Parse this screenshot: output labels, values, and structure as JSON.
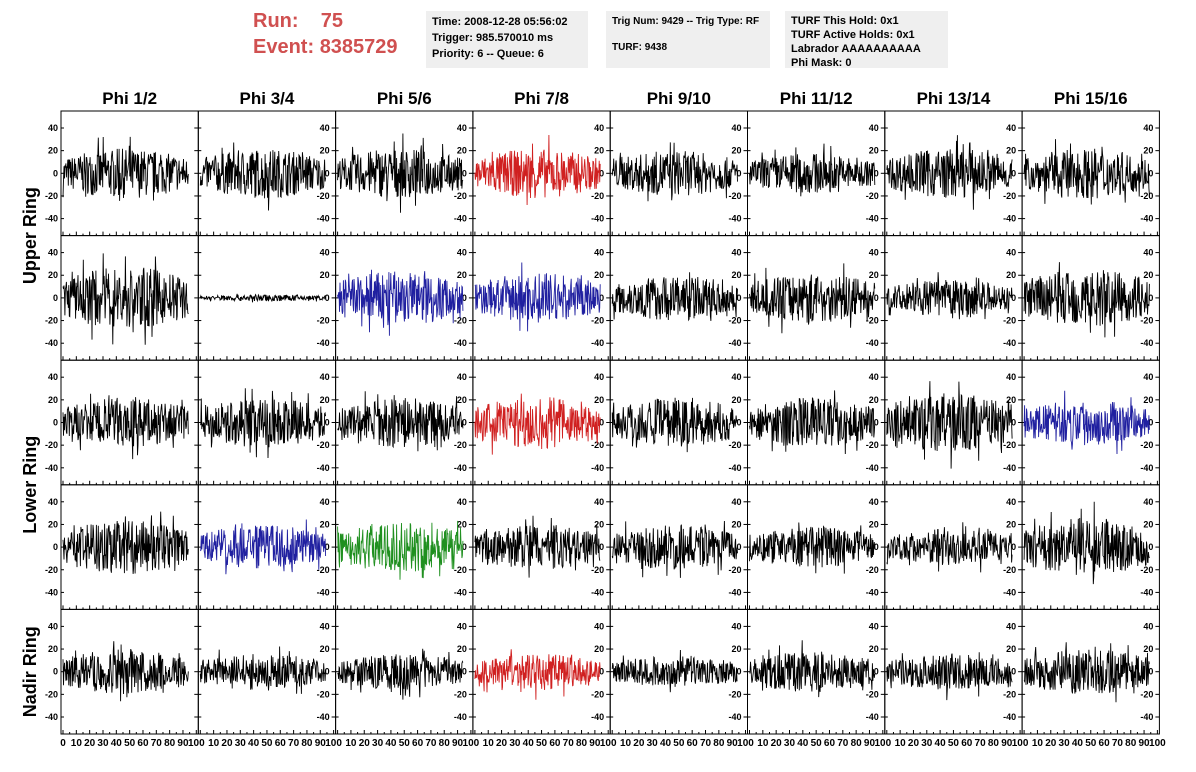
{
  "header": {
    "run_label": "Run:",
    "run_value": "75",
    "event_label": "Event:",
    "event_value": "8385729",
    "accent_color": "#d05050"
  },
  "info_time": {
    "line1": "Time: 2008-12-28 05:56:02",
    "line2": "Trigger: 985.570010 ms",
    "line3": "Priority: 6 -- Queue: 6"
  },
  "info_trigger": {
    "line1": "Trig Num: 9429 -- Trig Type: RF",
    "line2": "TURF: 9438"
  },
  "info_turf": {
    "line1": "TURF This Hold: 0x1",
    "line2": "TURF Active Holds: 0x1",
    "line3": "Labrador AAAAAAAAAA",
    "line4": "Phi Mask: 0"
  },
  "chart_data": {
    "type": "line",
    "columns": [
      "Phi 1/2",
      "Phi 3/4",
      "Phi 5/6",
      "Phi 7/8",
      "Phi 9/10",
      "Phi 11/12",
      "Phi 13/14",
      "Phi 15/16"
    ],
    "ring_labels": [
      "Upper Ring",
      "Lower Ring",
      "Nadir Ring"
    ],
    "ylim": [
      -55,
      55
    ],
    "yticks": [
      -40,
      -20,
      0,
      20,
      40
    ],
    "xlim": [
      0,
      100
    ],
    "xticks": [
      0,
      10,
      20,
      30,
      40,
      50,
      60,
      70,
      80,
      90,
      100
    ],
    "colors": {
      "normal": "#000000",
      "red": "#d02020",
      "blue": "#2020a0",
      "green": "#209020"
    },
    "waveform_amplitude": [
      [
        22,
        22,
        22,
        22,
        20,
        18,
        22,
        22
      ],
      [
        28,
        3,
        24,
        22,
        20,
        22,
        16,
        26
      ],
      [
        22,
        22,
        22,
        24,
        22,
        22,
        26,
        20
      ],
      [
        24,
        20,
        22,
        20,
        20,
        18,
        16,
        26
      ],
      [
        20,
        16,
        16,
        16,
        14,
        18,
        16,
        20
      ]
    ],
    "waveform_color": [
      [
        "normal",
        "normal",
        "normal",
        "red",
        "normal",
        "normal",
        "normal",
        "normal"
      ],
      [
        "normal",
        "normal",
        "blue",
        "blue",
        "normal",
        "normal",
        "normal",
        "normal"
      ],
      [
        "normal",
        "normal",
        "normal",
        "red",
        "normal",
        "normal",
        "normal",
        "blue"
      ],
      [
        "normal",
        "blue",
        "green",
        "normal",
        "normal",
        "normal",
        "normal",
        "normal"
      ],
      [
        "normal",
        "normal",
        "normal",
        "red",
        "normal",
        "normal",
        "normal",
        "normal"
      ]
    ]
  }
}
